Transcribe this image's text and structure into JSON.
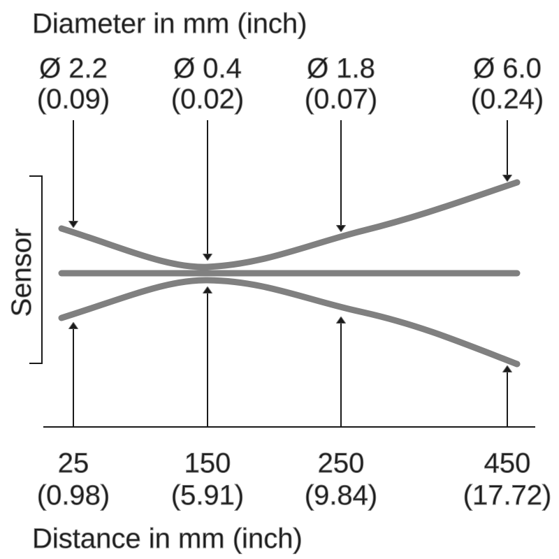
{
  "top_title": "Diameter in mm (inch)",
  "bottom_title": "Distance in mm (inch)",
  "side_label": "Sensor",
  "colors": {
    "beam": "#808080",
    "ink": "#1a1a1a"
  },
  "points": [
    {
      "diameter_mm": "Ø 2.2",
      "diameter_inch": "(0.09)",
      "distance_mm": "25",
      "distance_inch": "(0.98)"
    },
    {
      "diameter_mm": "Ø 0.4",
      "diameter_inch": "(0.02)",
      "distance_mm": "150",
      "distance_inch": "(5.91)"
    },
    {
      "diameter_mm": "Ø 1.8",
      "diameter_inch": "(0.07)",
      "distance_mm": "250",
      "distance_inch": "(9.84)"
    },
    {
      "diameter_mm": "Ø 6.0",
      "diameter_inch": "(0.24)",
      "distance_mm": "450",
      "distance_inch": "(17.72)"
    }
  ]
}
